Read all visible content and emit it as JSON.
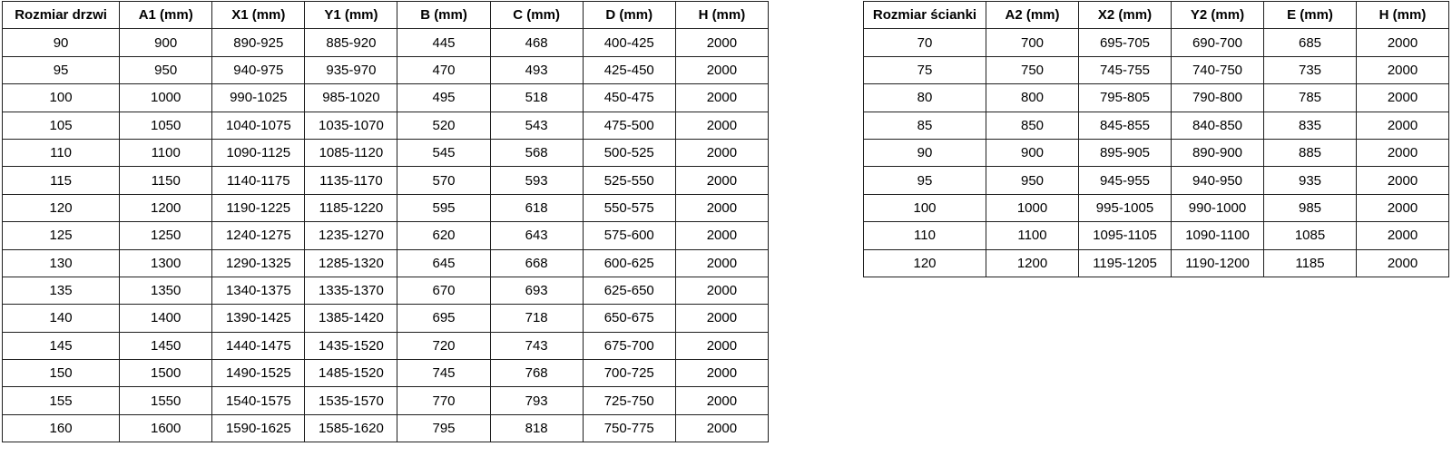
{
  "tables": {
    "doors": {
      "name": "door-sizes",
      "headers": [
        "Rozmiar drzwi",
        "A1 (mm)",
        "X1 (mm)",
        "Y1 (mm)",
        "B (mm)",
        "C (mm)",
        "D (mm)",
        "H (mm)"
      ],
      "rows": [
        [
          "90",
          "900",
          "890-925",
          "885-920",
          "445",
          "468",
          "400-425",
          "2000"
        ],
        [
          "95",
          "950",
          "940-975",
          "935-970",
          "470",
          "493",
          "425-450",
          "2000"
        ],
        [
          "100",
          "1000",
          "990-1025",
          "985-1020",
          "495",
          "518",
          "450-475",
          "2000"
        ],
        [
          "105",
          "1050",
          "1040-1075",
          "1035-1070",
          "520",
          "543",
          "475-500",
          "2000"
        ],
        [
          "110",
          "1100",
          "1090-1125",
          "1085-1120",
          "545",
          "568",
          "500-525",
          "2000"
        ],
        [
          "115",
          "1150",
          "1140-1175",
          "1135-1170",
          "570",
          "593",
          "525-550",
          "2000"
        ],
        [
          "120",
          "1200",
          "1190-1225",
          "1185-1220",
          "595",
          "618",
          "550-575",
          "2000"
        ],
        [
          "125",
          "1250",
          "1240-1275",
          "1235-1270",
          "620",
          "643",
          "575-600",
          "2000"
        ],
        [
          "130",
          "1300",
          "1290-1325",
          "1285-1320",
          "645",
          "668",
          "600-625",
          "2000"
        ],
        [
          "135",
          "1350",
          "1340-1375",
          "1335-1370",
          "670",
          "693",
          "625-650",
          "2000"
        ],
        [
          "140",
          "1400",
          "1390-1425",
          "1385-1420",
          "695",
          "718",
          "650-675",
          "2000"
        ],
        [
          "145",
          "1450",
          "1440-1475",
          "1435-1520",
          "720",
          "743",
          "675-700",
          "2000"
        ],
        [
          "150",
          "1500",
          "1490-1525",
          "1485-1520",
          "745",
          "768",
          "700-725",
          "2000"
        ],
        [
          "155",
          "1550",
          "1540-1575",
          "1535-1570",
          "770",
          "793",
          "725-750",
          "2000"
        ],
        [
          "160",
          "1600",
          "1590-1625",
          "1585-1620",
          "795",
          "818",
          "750-775",
          "2000"
        ]
      ]
    },
    "walls": {
      "name": "wall-sizes",
      "headers": [
        "Rozmiar ścianki",
        "A2 (mm)",
        "X2 (mm)",
        "Y2 (mm)",
        "E (mm)",
        "H (mm)"
      ],
      "rows": [
        [
          "70",
          "700",
          "695-705",
          "690-700",
          "685",
          "2000"
        ],
        [
          "75",
          "750",
          "745-755",
          "740-750",
          "735",
          "2000"
        ],
        [
          "80",
          "800",
          "795-805",
          "790-800",
          "785",
          "2000"
        ],
        [
          "85",
          "850",
          "845-855",
          "840-850",
          "835",
          "2000"
        ],
        [
          "90",
          "900",
          "895-905",
          "890-900",
          "885",
          "2000"
        ],
        [
          "95",
          "950",
          "945-955",
          "940-950",
          "935",
          "2000"
        ],
        [
          "100",
          "1000",
          "995-1005",
          "990-1000",
          "985",
          "2000"
        ],
        [
          "110",
          "1100",
          "1095-1105",
          "1090-1100",
          "1085",
          "2000"
        ],
        [
          "120",
          "1200",
          "1195-1205",
          "1190-1200",
          "1185",
          "2000"
        ]
      ]
    }
  },
  "colors": {
    "border": "#1f1f1f",
    "text": "#000000",
    "background": "#ffffff"
  }
}
